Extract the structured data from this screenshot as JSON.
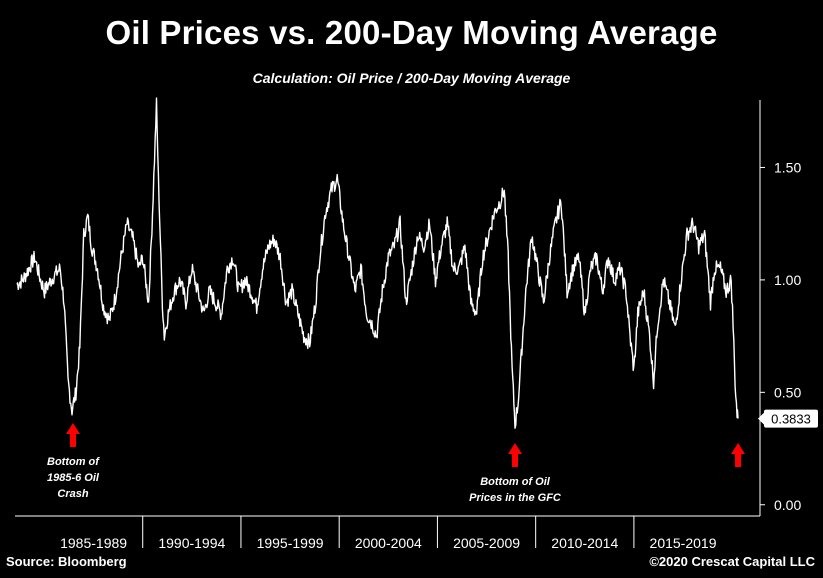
{
  "title": "Oil Prices vs. 200-Day Moving Average",
  "subtitle": "Calculation: Oil Price / 200-Day Moving Average",
  "source": "Source: Bloomberg",
  "copyright": "©2020 Crescat Capital LLC",
  "colors": {
    "background": "#000000",
    "line": "#ffffff",
    "arrow": "#ff0000"
  },
  "chart_data": {
    "type": "line",
    "title": "Oil Prices vs. 200-Day Moving Average",
    "subtitle": "Calculation: Oil Price / 200-Day Moving Average",
    "x_range": [
      1983.5,
      2020.4
    ],
    "ylim": [
      -0.05,
      1.8
    ],
    "yticks": [
      0.0,
      0.5,
      1.0,
      1.5
    ],
    "ytick_labels": [
      "0.00",
      "0.50",
      "1.00",
      "1.50"
    ],
    "x_categories": [
      "1985-1989",
      "1990-1994",
      "1995-1999",
      "2000-2004",
      "2005-2009",
      "2010-2014",
      "2015-2019"
    ],
    "x_category_ranges": [
      [
        1985,
        1990
      ],
      [
        1990,
        1995
      ],
      [
        1995,
        2000
      ],
      [
        2000,
        2005
      ],
      [
        2005,
        2010
      ],
      [
        2010,
        2015
      ],
      [
        2015,
        2020
      ]
    ],
    "series": [
      {
        "name": "Oil Price / 200-Day Moving Average",
        "x": [
          1983.6,
          1983.9,
          1984.2,
          1984.5,
          1984.8,
          1985.0,
          1985.2,
          1985.5,
          1985.8,
          1986.0,
          1986.2,
          1986.4,
          1986.6,
          1986.8,
          1987.0,
          1987.2,
          1987.4,
          1987.7,
          1988.0,
          1988.3,
          1988.6,
          1988.9,
          1989.2,
          1989.5,
          1989.8,
          1990.0,
          1990.3,
          1990.5,
          1990.7,
          1990.8,
          1991.0,
          1991.1,
          1991.3,
          1991.6,
          1991.9,
          1992.2,
          1992.5,
          1992.8,
          1993.1,
          1993.4,
          1993.7,
          1994.0,
          1994.3,
          1994.6,
          1994.9,
          1995.2,
          1995.5,
          1995.8,
          1996.1,
          1996.4,
          1996.7,
          1997.0,
          1997.3,
          1997.6,
          1997.9,
          1998.2,
          1998.5,
          1998.8,
          1999.0,
          1999.3,
          1999.6,
          1999.9,
          2000.2,
          2000.5,
          2000.8,
          2001.1,
          2001.4,
          2001.7,
          2001.9,
          2002.2,
          2002.5,
          2002.8,
          2003.1,
          2003.4,
          2003.7,
          2004.0,
          2004.3,
          2004.6,
          2004.9,
          2005.2,
          2005.5,
          2005.8,
          2006.1,
          2006.4,
          2006.7,
          2007.0,
          2007.3,
          2007.6,
          2007.9,
          2008.2,
          2008.4,
          2008.6,
          2008.8,
          2008.95,
          2009.1,
          2009.3,
          2009.5,
          2009.8,
          2010.1,
          2010.4,
          2010.7,
          2011.0,
          2011.3,
          2011.6,
          2011.9,
          2012.2,
          2012.5,
          2012.8,
          2013.1,
          2013.4,
          2013.7,
          2014.0,
          2014.3,
          2014.6,
          2014.8,
          2015.0,
          2015.2,
          2015.5,
          2015.8,
          2016.0,
          2016.2,
          2016.5,
          2016.8,
          2017.1,
          2017.4,
          2017.7,
          2018.0,
          2018.3,
          2018.6,
          2018.9,
          2019.1,
          2019.4,
          2019.7,
          2019.95,
          2020.05,
          2020.15,
          2020.25,
          2020.3
        ],
        "y": [
          0.98,
          1.0,
          1.05,
          1.1,
          1.0,
          0.95,
          0.98,
          1.02,
          1.05,
          0.9,
          0.55,
          0.42,
          0.5,
          0.7,
          1.2,
          1.28,
          1.15,
          1.05,
          0.88,
          0.82,
          0.92,
          1.1,
          1.25,
          1.18,
          1.05,
          1.1,
          0.9,
          1.3,
          1.78,
          1.45,
          0.9,
          0.75,
          0.85,
          0.95,
          1.0,
          0.9,
          1.05,
          0.95,
          0.85,
          0.95,
          0.9,
          0.85,
          1.05,
          1.1,
          0.95,
          1.0,
          0.95,
          0.88,
          1.05,
          1.15,
          1.18,
          1.1,
          0.9,
          0.95,
          0.85,
          0.75,
          0.72,
          0.9,
          1.1,
          1.3,
          1.4,
          1.45,
          1.25,
          1.1,
          0.95,
          1.05,
          0.85,
          0.8,
          0.75,
          0.95,
          1.1,
          1.15,
          1.25,
          0.9,
          1.05,
          1.2,
          1.15,
          1.25,
          1.0,
          1.15,
          1.25,
          1.05,
          1.05,
          1.15,
          0.9,
          0.85,
          1.1,
          1.2,
          1.3,
          1.35,
          1.4,
          1.1,
          0.6,
          0.36,
          0.45,
          0.7,
          0.95,
          1.2,
          1.05,
          0.9,
          1.1,
          1.25,
          1.35,
          0.95,
          1.05,
          1.1,
          0.85,
          1.05,
          1.1,
          0.95,
          1.1,
          1.0,
          1.05,
          0.95,
          0.75,
          0.6,
          0.85,
          0.95,
          0.75,
          0.55,
          0.8,
          1.0,
          0.9,
          0.78,
          1.0,
          1.2,
          1.25,
          1.15,
          1.2,
          0.9,
          1.05,
          1.05,
          0.95,
          1.0,
          0.8,
          0.55,
          0.4,
          0.3833
        ]
      }
    ],
    "last_value_label": "0.3833",
    "annotations": [
      {
        "lines": [
          "Bottom of",
          "1985-6 Oil",
          "Crash"
        ],
        "x": 1986.4
      },
      {
        "lines": [
          "Bottom of Oil",
          "Prices in the GFC"
        ],
        "x": 2008.95
      },
      {
        "lines": [],
        "x": 2020.3
      }
    ]
  }
}
